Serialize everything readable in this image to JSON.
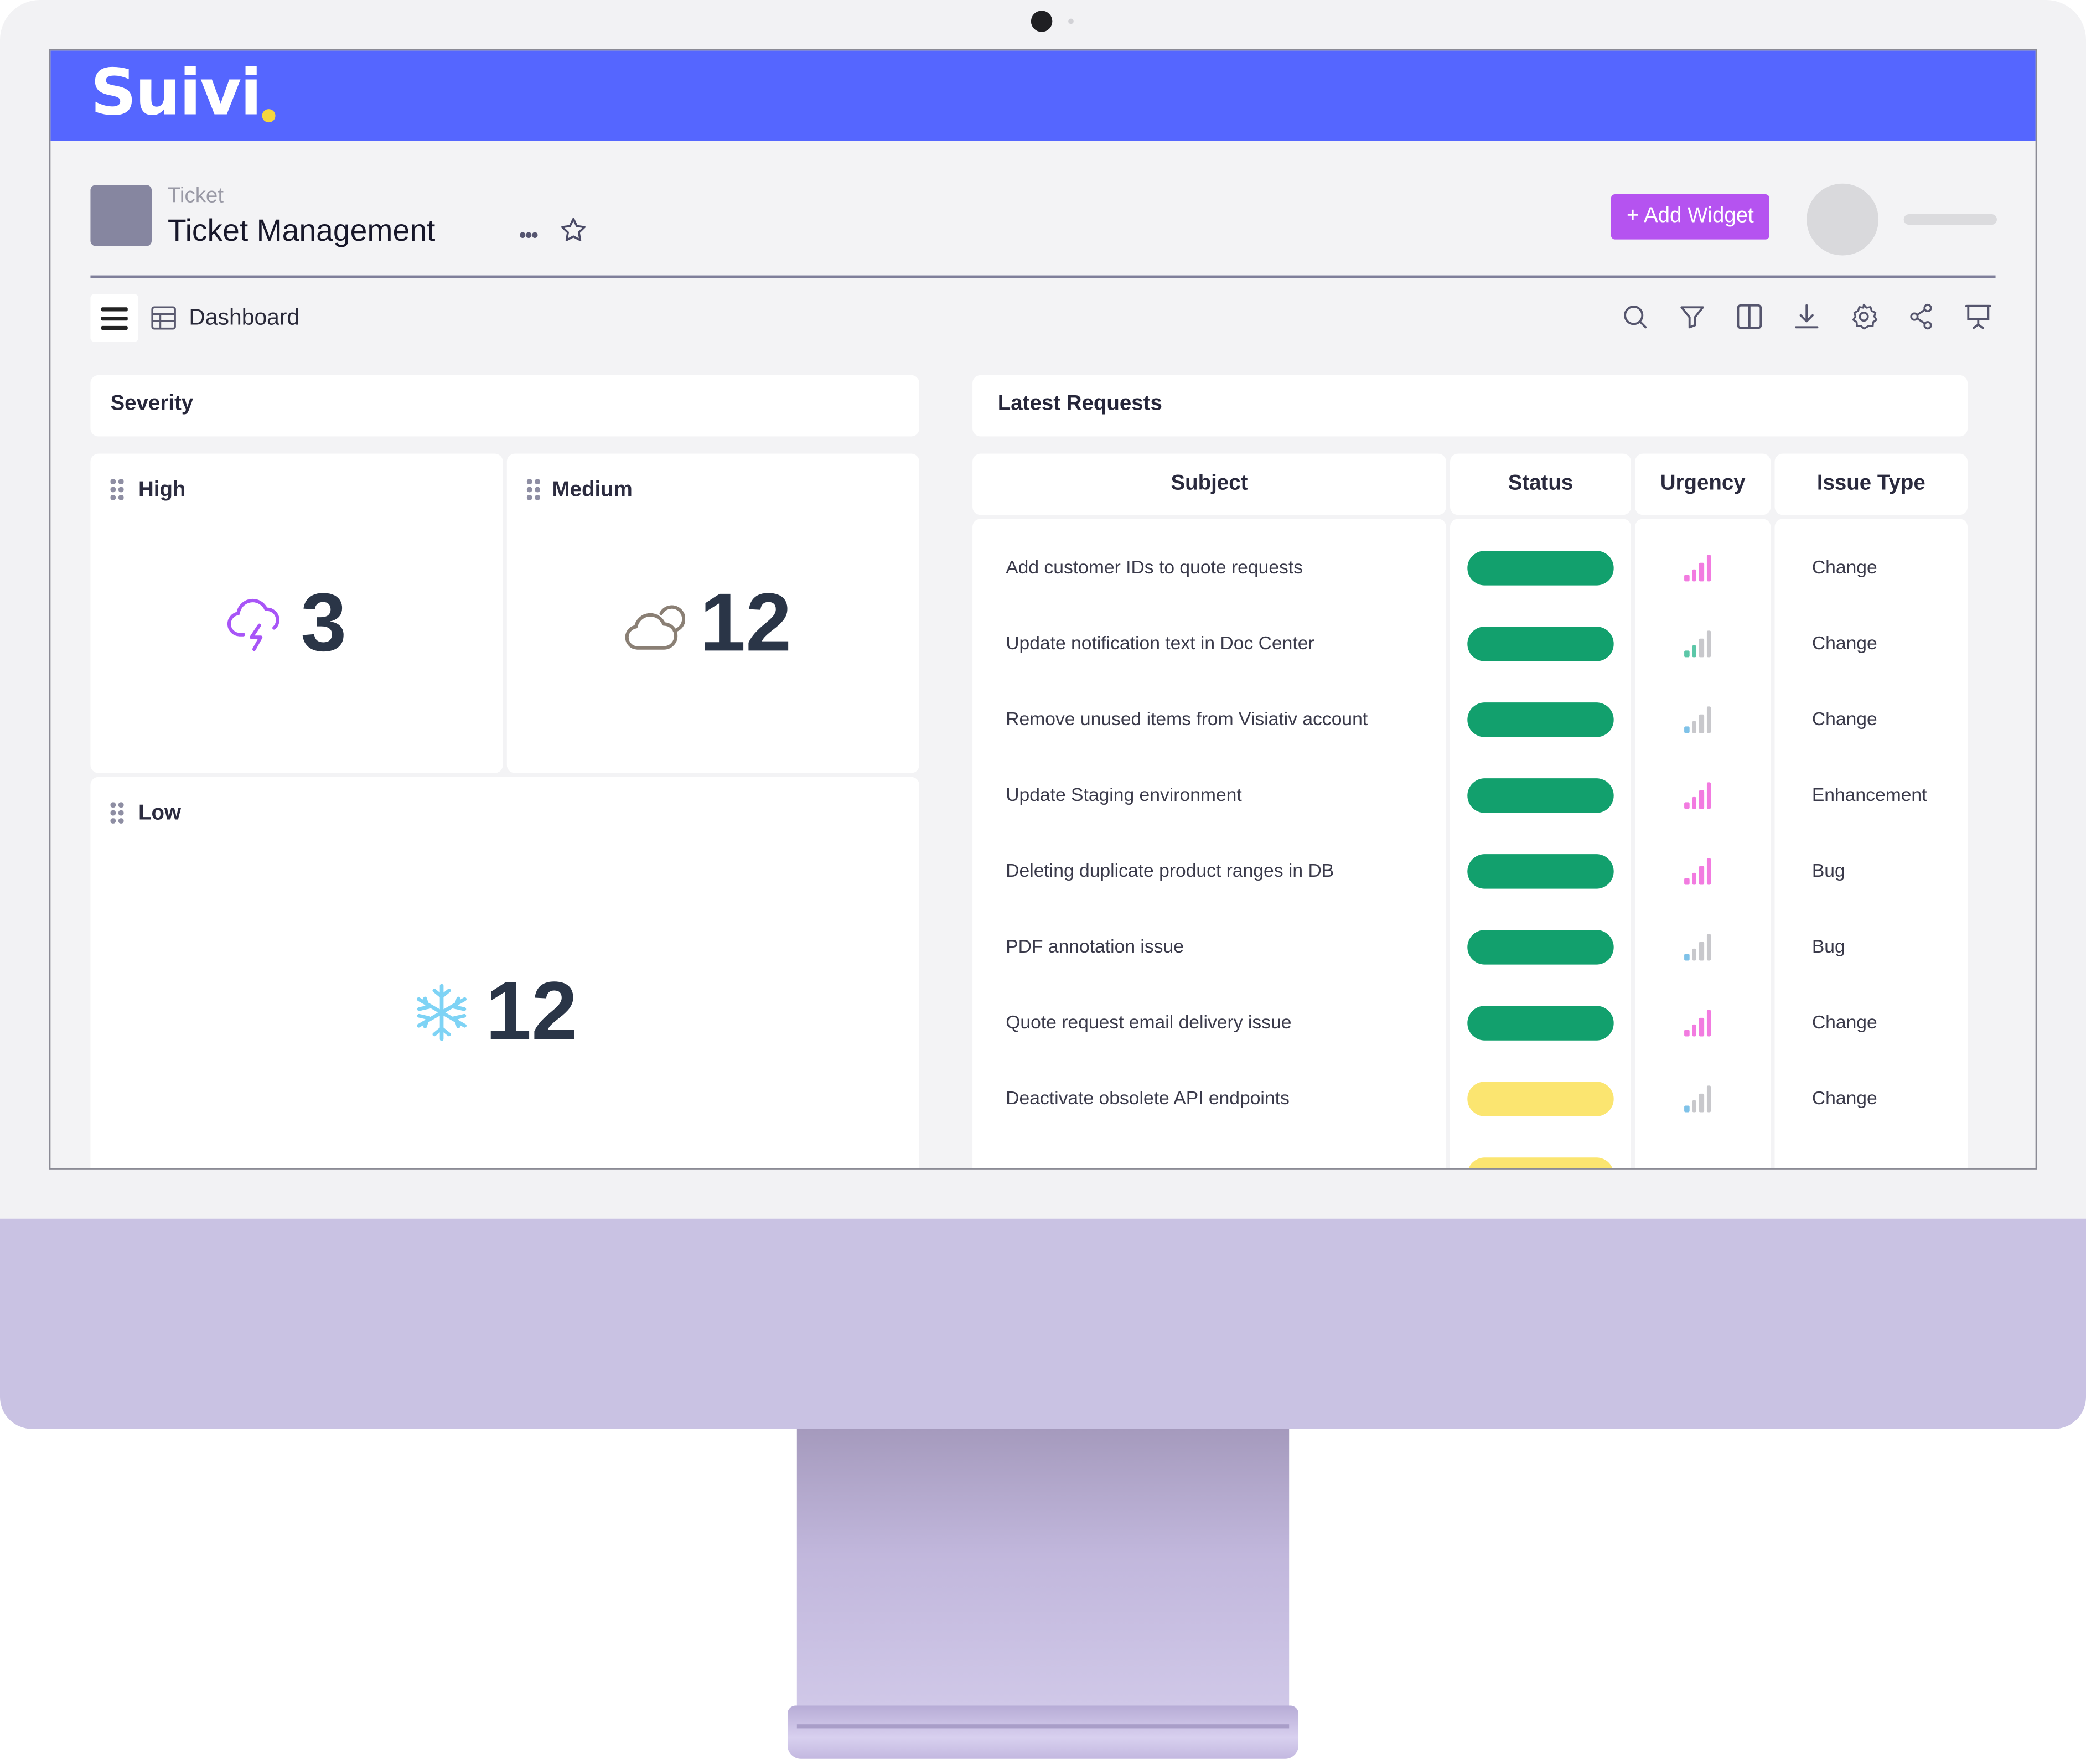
{
  "app": {
    "brand": "Suivi",
    "breadcrumb": "Ticket",
    "page_title": "Ticket Management",
    "more_label": "•••",
    "add_widget_label": "+ Add Widget",
    "view_label": "Dashboard"
  },
  "toolbar_icons": [
    "search-icon",
    "filter-icon",
    "columns-icon",
    "download-icon",
    "settings-icon",
    "share-icon",
    "presentation-icon"
  ],
  "severity": {
    "title": "Severity",
    "high": {
      "label": "High",
      "value": "3",
      "icon": "storm-icon",
      "color": "#a855f7"
    },
    "medium": {
      "label": "Medium",
      "value": "12",
      "icon": "cloud-icon",
      "color": "#8a7f74"
    },
    "low": {
      "label": "Low",
      "value": "12",
      "icon": "snowflake-icon",
      "color": "#7ed3f5"
    }
  },
  "latest_requests": {
    "title": "Latest Requests",
    "columns": [
      "Subject",
      "Status",
      "Urgency",
      "Issue Type"
    ],
    "status_colors": {
      "done": "#12a06d",
      "pending": "#fbe570"
    },
    "urgency_colors": {
      "high": "#f27be0",
      "low": "#5cc7a8",
      "medium": "#7fc2e8"
    },
    "rows": [
      {
        "subject": "Add customer IDs to quote requests",
        "status": "done",
        "urgency": "high",
        "urgency_level": 4,
        "issue_type": "Change"
      },
      {
        "subject": "Update notification text in Doc Center",
        "status": "done",
        "urgency": "low",
        "urgency_level": 2,
        "issue_type": "Change"
      },
      {
        "subject": "Remove unused items from Visiativ account",
        "status": "done",
        "urgency": "medium",
        "urgency_level": 1,
        "issue_type": "Change"
      },
      {
        "subject": "Update Staging environment",
        "status": "done",
        "urgency": "high",
        "urgency_level": 4,
        "issue_type": "Enhancement"
      },
      {
        "subject": "Deleting duplicate product ranges in DB",
        "status": "done",
        "urgency": "high",
        "urgency_level": 4,
        "issue_type": "Bug"
      },
      {
        "subject": "PDF annotation issue",
        "status": "done",
        "urgency": "medium",
        "urgency_level": 1,
        "issue_type": "Bug"
      },
      {
        "subject": "Quote request email delivery issue",
        "status": "done",
        "urgency": "high",
        "urgency_level": 4,
        "issue_type": "Change"
      },
      {
        "subject": "Deactivate obsolete API endpoints",
        "status": "pending",
        "urgency": "medium",
        "urgency_level": 1,
        "issue_type": "Change"
      }
    ]
  }
}
